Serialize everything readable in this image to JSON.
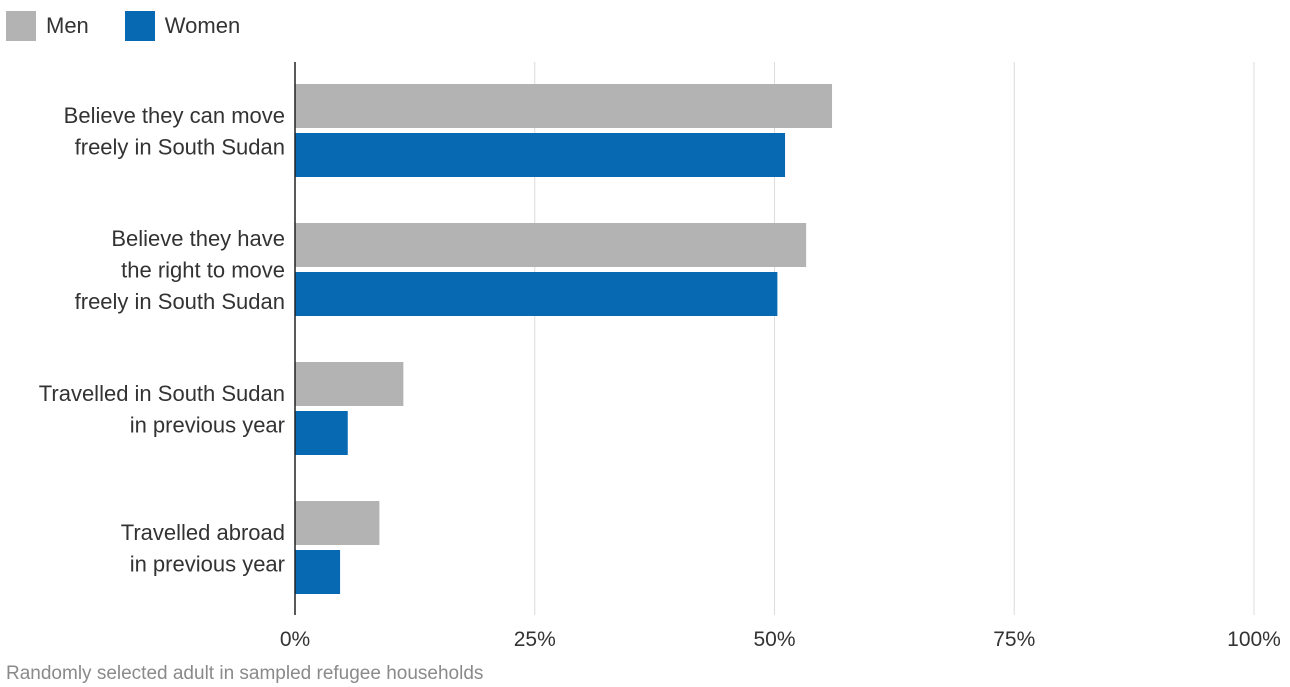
{
  "chart_data": {
    "type": "bar",
    "orientation": "horizontal",
    "categories": [
      [
        "Believe they can move",
        "freely in South Sudan"
      ],
      [
        "Believe they have",
        "the right to move",
        "freely in South Sudan"
      ],
      [
        "Travelled in South Sudan",
        "in previous year"
      ],
      [
        "Travelled abroad",
        "in previous year"
      ]
    ],
    "series": [
      {
        "name": "Men",
        "color": "#b3b3b3",
        "values": [
          56.0,
          53.3,
          11.3,
          8.8
        ]
      },
      {
        "name": "Women",
        "color": "#0669b2",
        "values": [
          51.1,
          50.3,
          5.5,
          4.7
        ]
      }
    ],
    "xlim": [
      0,
      100
    ],
    "x_ticks": [
      0,
      25,
      50,
      75,
      100
    ],
    "x_tick_labels": [
      "0%",
      "25%",
      "50%",
      "75%",
      "100%"
    ],
    "grid": "vertical",
    "legend_position": "top-left",
    "note": "Randomly selected adult in sampled refugee households"
  }
}
